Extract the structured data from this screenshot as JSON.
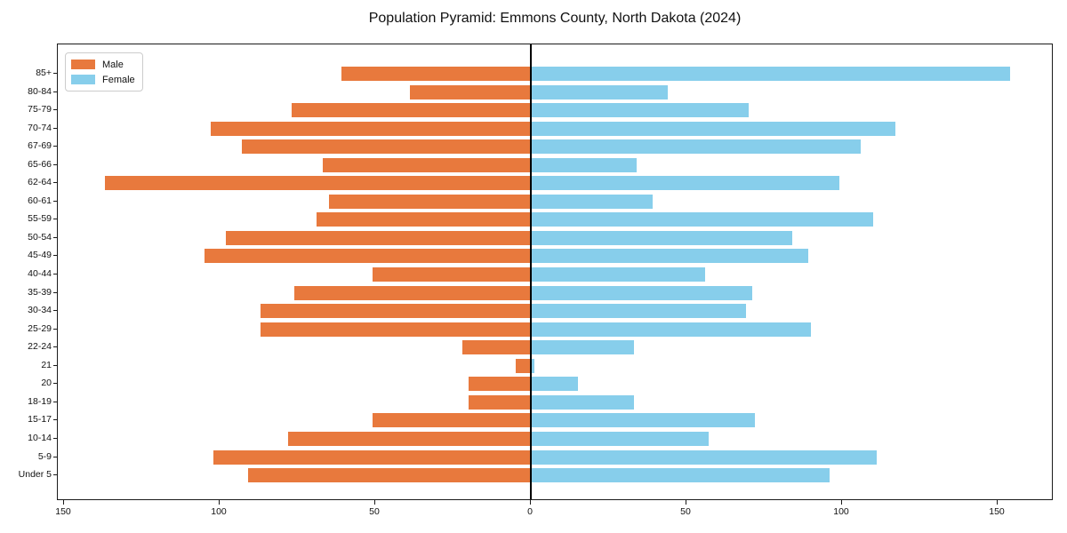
{
  "title": "Population Pyramid: Emmons County, North Dakota (2024)",
  "colors": {
    "male": "#e8793d",
    "female": "#87ceeb",
    "axis": "#1a1a1a",
    "zero_line": "#000000"
  },
  "legend": {
    "male_label": "Male",
    "female_label": "Female"
  },
  "chart_data": {
    "type": "bar",
    "subtype": "population-pyramid",
    "title": "Population Pyramid: Emmons County, North Dakota (2024)",
    "categories": [
      "85+",
      "80-84",
      "75-79",
      "70-74",
      "67-69",
      "65-66",
      "62-64",
      "60-61",
      "55-59",
      "50-54",
      "45-49",
      "40-44",
      "35-39",
      "30-34",
      "25-29",
      "22-24",
      "21",
      "20",
      "18-19",
      "15-17",
      "10-14",
      "5-9",
      "Under 5"
    ],
    "series": [
      {
        "name": "Male",
        "side": "left",
        "color": "#e8793d",
        "values": [
          61,
          39,
          77,
          103,
          93,
          67,
          137,
          65,
          69,
          98,
          105,
          51,
          76,
          87,
          87,
          22,
          5,
          20,
          20,
          51,
          78,
          102,
          91
        ]
      },
      {
        "name": "Female",
        "side": "right",
        "color": "#87ceeb",
        "values": [
          154,
          44,
          70,
          117,
          106,
          34,
          99,
          39,
          110,
          84,
          89,
          56,
          71,
          69,
          90,
          33,
          1,
          15,
          33,
          72,
          57,
          111,
          96
        ]
      }
    ],
    "xlabel": "",
    "ylabel": "",
    "x_tick_labels": [
      "150",
      "100",
      "50",
      "0",
      "50",
      "100",
      "150"
    ],
    "x_tick_values": [
      -150,
      -100,
      -50,
      0,
      50,
      100,
      150
    ],
    "xlim": [
      -152,
      168
    ],
    "grid": false,
    "legend_position": "upper left"
  }
}
